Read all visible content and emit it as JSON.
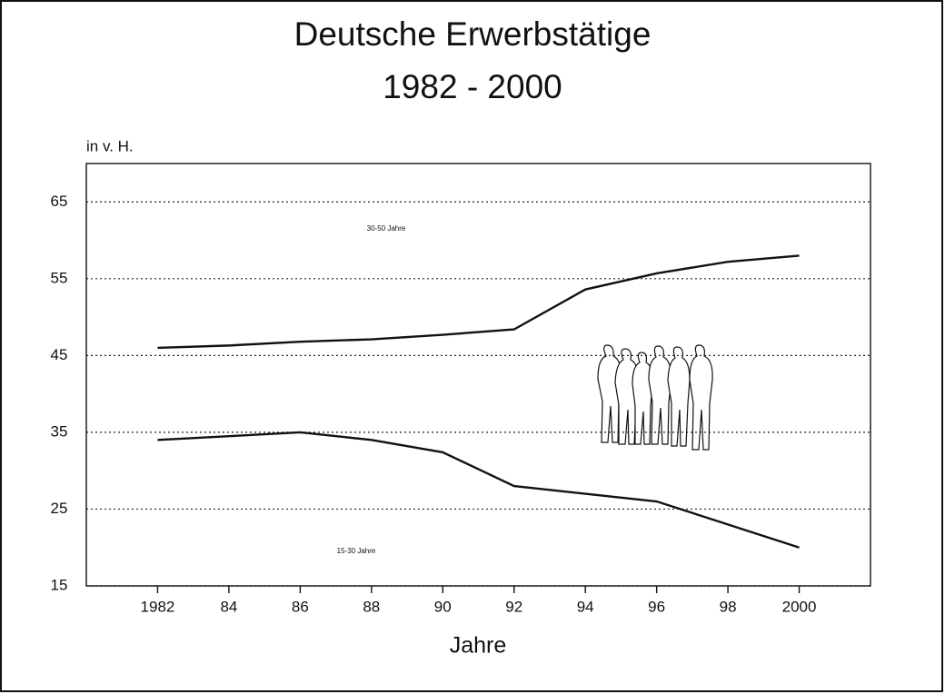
{
  "chart_data": {
    "type": "line",
    "title": "Deutsche Erwerbstätige",
    "subtitle": "1982 - 2000",
    "y_label": "in v. H.",
    "x_label": "Jahre",
    "x": [
      1982,
      1984,
      1986,
      1988,
      1990,
      1992,
      1994,
      1996,
      1998,
      2000
    ],
    "series": [
      {
        "name": "30-50 Jahre",
        "color": "#111111",
        "values": [
          46,
          46.3,
          46.8,
          47.1,
          47.7,
          48.4,
          53.6,
          55.7,
          57.2,
          58
        ]
      },
      {
        "name": "15-30 Jahre",
        "color": "#111111",
        "values": [
          34,
          34.5,
          35,
          34,
          32.4,
          28,
          27,
          26,
          23,
          20
        ]
      }
    ],
    "xlim": [
      1980,
      2002
    ],
    "xticks": [
      1982,
      {
        "value": 1984,
        "label": "84"
      },
      {
        "value": 1986,
        "label": "86"
      },
      {
        "value": 1988,
        "label": "88"
      },
      {
        "value": 1990,
        "label": "90"
      },
      {
        "value": 1992,
        "label": "92"
      },
      {
        "value": 1994,
        "label": "94"
      },
      {
        "value": 1996,
        "label": "96"
      },
      {
        "value": 1998,
        "label": "98"
      },
      2000
    ],
    "ylim": [
      15,
      70
    ],
    "yticks": [
      15,
      25,
      35,
      45,
      55,
      65
    ],
    "grid": true
  }
}
